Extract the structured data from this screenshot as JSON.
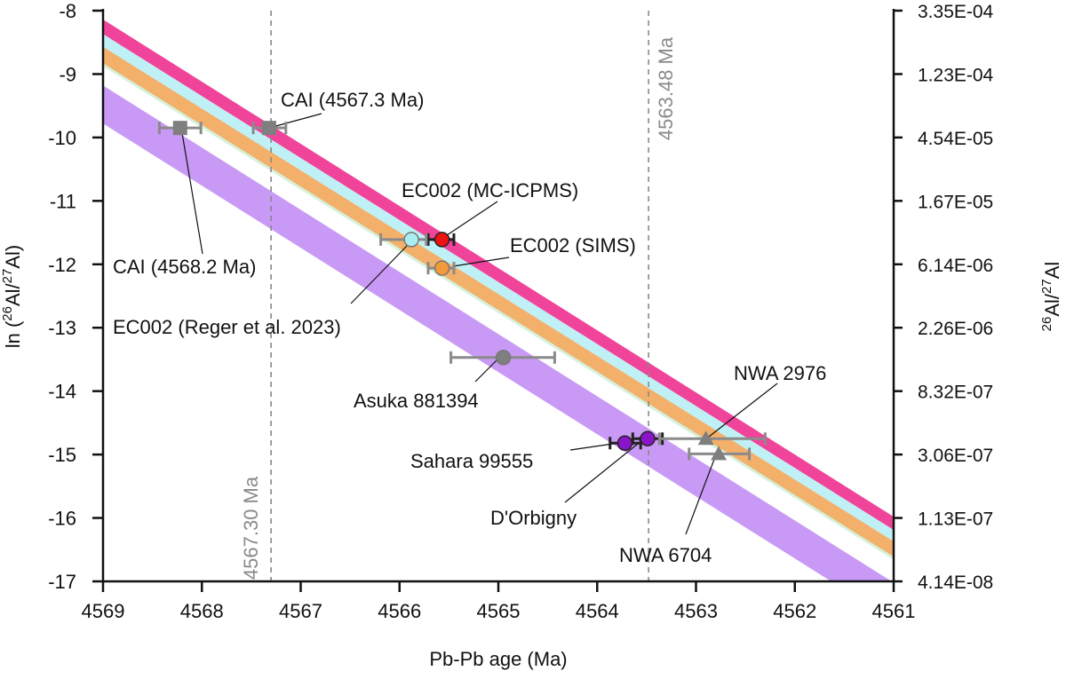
{
  "chart_data": {
    "type": "scatter",
    "xlabel": "Pb-Pb age (Ma)",
    "ylabel": "ln (26Al/27Al)",
    "ylabel_parts": [
      "ln (",
      "26",
      "Al/",
      "27",
      "Al)"
    ],
    "y2label_parts": [
      "26",
      "Al/",
      "27",
      "Al"
    ],
    "xlim": [
      4569,
      4561
    ],
    "ylim": [
      -17,
      -8
    ],
    "x_reversed": true,
    "grid": false,
    "x_ticks": [
      "4569",
      "4568",
      "4567",
      "4566",
      "4565",
      "4564",
      "4563",
      "4562",
      "4561"
    ],
    "y_ticks": [
      "-8",
      "-9",
      "-10",
      "-11",
      "-12",
      "-13",
      "-14",
      "-15",
      "-16",
      "-17"
    ],
    "y2_ticks": [
      "3.35E-04",
      "1.23E-04",
      "4.54E-05",
      "1.67E-05",
      "6.14E-06",
      "2.26E-06",
      "8.32E-07",
      "3.06E-07",
      "1.13E-07",
      "4.14E-08"
    ],
    "bands": [
      {
        "color": "#f0449a",
        "ln_at_4569": [
          -8.14,
          -8.37
        ],
        "ln_at_4561": [
          -15.98,
          -16.19
        ]
      },
      {
        "color": "#bff0f5",
        "ln_at_4569": [
          -8.37,
          -8.57
        ],
        "ln_at_4561": [
          -16.19,
          -16.37
        ]
      },
      {
        "color": "#f2b06a",
        "ln_at_4569": [
          -8.57,
          -8.84
        ],
        "ln_at_4561": [
          -16.37,
          -16.62
        ]
      },
      {
        "color": "#c99af5",
        "ln_at_4569": [
          -9.18,
          -9.78
        ],
        "ln_at_4561": [
          -17.02,
          -17.62
        ]
      }
    ],
    "reference_lines": [
      {
        "age": 4567.3,
        "label": "4567.30 Ma"
      },
      {
        "age": 4563.48,
        "label": "4563.48 Ma"
      }
    ],
    "points": [
      {
        "label": "CAI (4568.2 Ma)",
        "age": 4568.22,
        "ln": -9.85,
        "err": [
          4568.43,
          4568.01
        ],
        "marker": "square",
        "color": "#7f7f7f",
        "errcolor": "#8a8a8a"
      },
      {
        "label": "CAI (4567.3 Ma)",
        "age": 4567.32,
        "ln": -9.85,
        "err": [
          4567.48,
          4567.15
        ],
        "marker": "square",
        "color": "#7f7f7f",
        "errcolor": "#8a8a8a"
      },
      {
        "label": "EC002 (MC-ICPMS)",
        "age": 4565.57,
        "ln": -11.61,
        "err": [
          4565.71,
          4565.45
        ],
        "marker": "circle",
        "color": "#ee1111",
        "errcolor": "#222222"
      },
      {
        "label": "EC002 (Reger et al. 2023)",
        "age": 4565.88,
        "ln": -11.61,
        "err": [
          4566.19,
          4565.73
        ],
        "marker": "circle",
        "color": "#a8eef2",
        "errcolor": "#8a8a8a"
      },
      {
        "label": "EC002 (SIMS)",
        "age": 4565.57,
        "ln": -12.06,
        "err": [
          4565.71,
          4565.45
        ],
        "marker": "circle",
        "color": "#f59a3a",
        "errcolor": "#8a8a8a"
      },
      {
        "label": "Asuka 881394",
        "age": 4564.95,
        "ln": -13.47,
        "err": [
          4565.48,
          4564.43
        ],
        "marker": "circle",
        "color": "#7f7f7f",
        "errcolor": "#8a8a8a"
      },
      {
        "label": "Sahara 99555",
        "age": 4563.72,
        "ln": -14.82,
        "err": [
          4563.87,
          4563.56
        ],
        "marker": "circle",
        "color": "#8a14c8",
        "errcolor": "#222222"
      },
      {
        "label": "D'Orbigny",
        "age": 4563.49,
        "ln": -14.75,
        "err": [
          4563.64,
          4563.34
        ],
        "marker": "circle",
        "color": "#8a14c8",
        "errcolor": "#222222"
      },
      {
        "label": "NWA 2976",
        "age": 4562.9,
        "ln": -14.75,
        "err": [
          4563.37,
          4562.3
        ],
        "marker": "triangle",
        "color": "#7f7f7f",
        "errcolor": "#8a8a8a"
      },
      {
        "label": "NWA 6704",
        "age": 4562.77,
        "ln": -14.99,
        "err": [
          4563.07,
          4562.46
        ],
        "marker": "triangle",
        "color": "#7f7f7f",
        "errcolor": "#8a8a8a"
      }
    ]
  }
}
